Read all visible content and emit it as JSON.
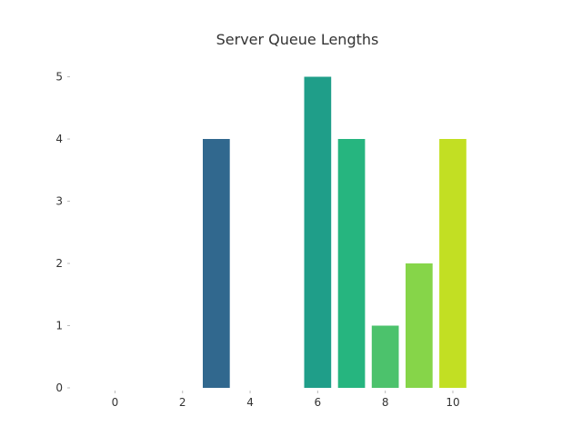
{
  "chart_data": {
    "type": "bar",
    "title": "Server Queue Lengths",
    "xlabel": "",
    "ylabel": "",
    "x": [
      0,
      1,
      2,
      3,
      4,
      5,
      6,
      7,
      8,
      9,
      10
    ],
    "values": [
      0,
      0,
      0,
      4,
      0,
      0,
      5,
      4,
      1,
      2,
      4
    ],
    "colors": [
      "#440154",
      "#482878",
      "#3e4a89",
      "#31688e",
      "#26828e",
      "#1f9e89",
      "#1f9e89",
      "#26b57f",
      "#4cc26c",
      "#86d549",
      "#c2df23"
    ],
    "xticks": [
      0,
      2,
      4,
      6,
      8,
      10
    ],
    "yticks": [
      0,
      1,
      2,
      3,
      4,
      5
    ],
    "xlim": [
      -1.25,
      12.1
    ],
    "ylim": [
      0,
      5.3
    ],
    "grid": false,
    "legend": false
  }
}
